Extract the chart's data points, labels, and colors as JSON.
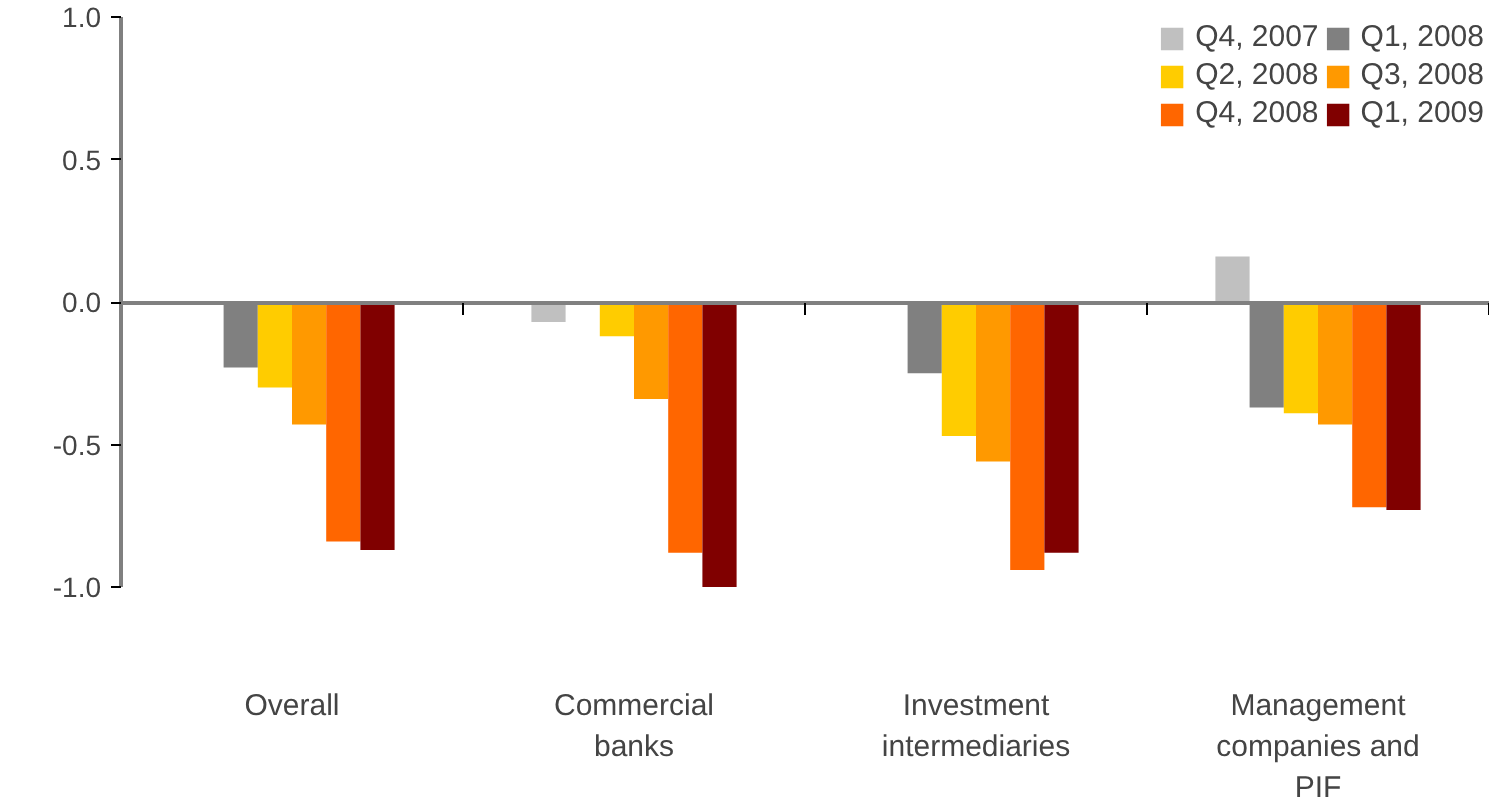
{
  "chart_data": {
    "type": "bar",
    "categories": [
      "Overall",
      "Commercial banks",
      "Investment intermediaries",
      "Management companies and PIF"
    ],
    "series": [
      {
        "name": "Q4, 2007",
        "color": "#c0c0c0",
        "values": [
          null,
          -0.07,
          null,
          0.16
        ]
      },
      {
        "name": "Q1, 2008",
        "color": "#808080",
        "values": [
          -0.23,
          null,
          -0.25,
          -0.37
        ]
      },
      {
        "name": "Q2, 2008",
        "color": "#ffcc00",
        "values": [
          -0.3,
          -0.12,
          -0.47,
          -0.39
        ]
      },
      {
        "name": "Q3, 2008",
        "color": "#ff9900",
        "values": [
          -0.43,
          -0.34,
          -0.56,
          -0.43
        ]
      },
      {
        "name": "Q4, 2008",
        "color": "#ff6600",
        "values": [
          -0.84,
          -0.88,
          -0.94,
          -0.72
        ]
      },
      {
        "name": "Q1, 2009",
        "color": "#800000",
        "values": [
          -0.87,
          -1.0,
          -0.88,
          -0.73
        ]
      }
    ],
    "ylim": [
      -1.0,
      1.0
    ],
    "yticks": [
      {
        "value": 1.0,
        "label": "1.0"
      },
      {
        "value": 0.5,
        "label": "0.5"
      },
      {
        "value": 0.0,
        "label": "0.0"
      },
      {
        "value": -0.5,
        "label": "-0.5"
      },
      {
        "value": -1.0,
        "label": "-1.0"
      }
    ],
    "legend": "top right"
  }
}
